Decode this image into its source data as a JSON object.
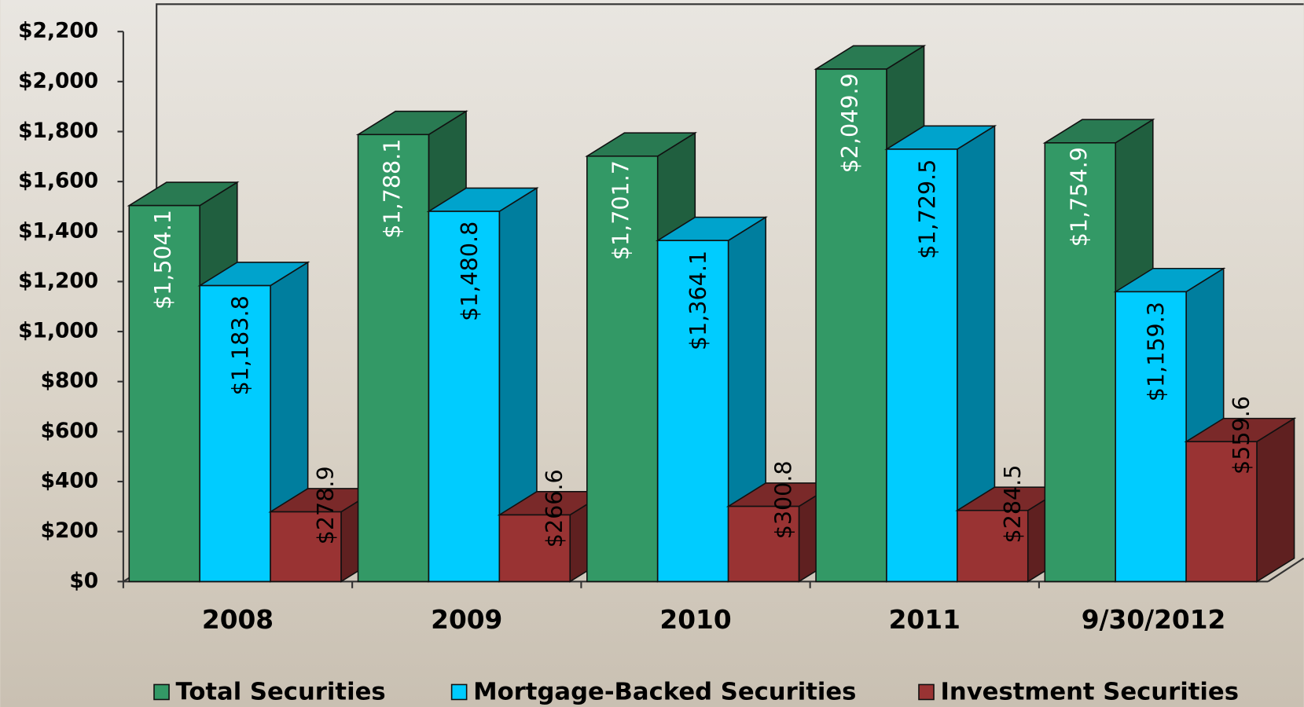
{
  "chart_data": {
    "type": "bar3d",
    "categories": [
      "2008",
      "2009",
      "2010",
      "2011",
      "9/30/2012"
    ],
    "series": [
      {
        "name": "Total Securities",
        "color": "#339966",
        "values": [
          1504.1,
          1788.1,
          1701.7,
          2049.9,
          1754.9
        ],
        "value_labels": [
          "$1,504.1",
          "$1,788.1",
          "$1,701.7",
          "$2,049.9",
          "$1,754.9"
        ]
      },
      {
        "name": "Mortgage-Backed Securities",
        "color": "#00ccff",
        "values": [
          1183.8,
          1480.8,
          1364.1,
          1729.5,
          1159.3
        ],
        "value_labels": [
          "$1,183.8",
          "$1,480.8",
          "$1,364.1",
          "$1,729.5",
          "$1,159.3"
        ]
      },
      {
        "name": "Investment Securities",
        "color": "#993333",
        "values": [
          278.9,
          266.6,
          300.8,
          284.5,
          559.6
        ],
        "value_labels": [
          "$278.9",
          "$266.6",
          "$300.8",
          "$284.5",
          "$559.6"
        ]
      }
    ],
    "ylim": [
      0,
      2200
    ],
    "yticks": [
      {
        "value": 0,
        "label": "$0"
      },
      {
        "value": 200,
        "label": "$200"
      },
      {
        "value": 400,
        "label": "$400"
      },
      {
        "value": 600,
        "label": "$600"
      },
      {
        "value": 800,
        "label": "$800"
      },
      {
        "value": 1000,
        "label": "$1,000"
      },
      {
        "value": 1200,
        "label": "$1,200"
      },
      {
        "value": 1400,
        "label": "$1,400"
      },
      {
        "value": 1600,
        "label": "$1,600"
      },
      {
        "value": 1800,
        "label": "$1,800"
      },
      {
        "value": 2000,
        "label": "$2,000"
      },
      {
        "value": 2200,
        "label": "$2,200"
      }
    ],
    "legend": "bottom"
  }
}
